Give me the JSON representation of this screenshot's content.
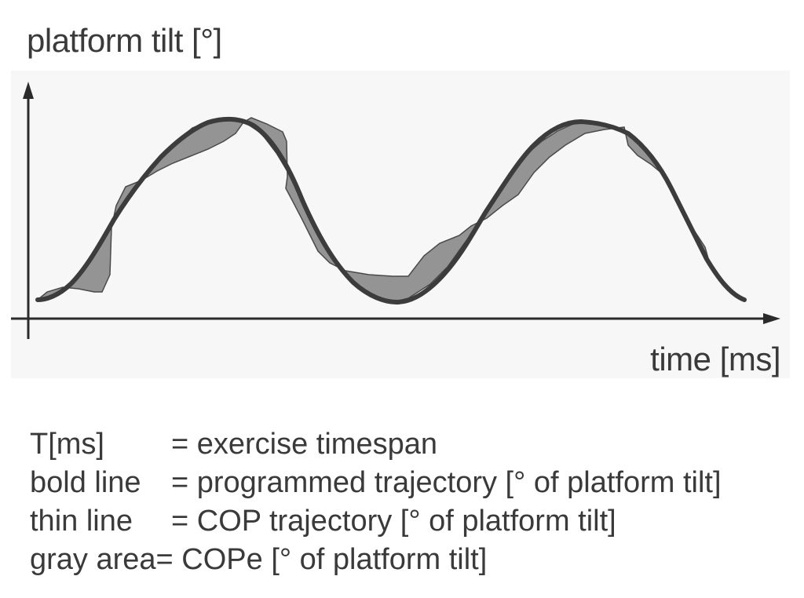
{
  "figure": {
    "y_label": "platform tilt [°]",
    "x_label": "time [ms]",
    "colors": {
      "axis": "#2b2b2b",
      "programmed": "#3c3c3c",
      "cop_line": "#4a4a4a",
      "cope_fill": "#8e8e8e",
      "background": "#f7f7f7"
    }
  },
  "legend": [
    {
      "term": "T[ms]",
      "desc": "= exercise timespan"
    },
    {
      "term": "bold line",
      "desc": "= programmed trajectory [° of platform tilt]"
    },
    {
      "term": "thin line",
      "desc": "= COP trajectory [° of platform tilt]"
    },
    {
      "term": "gray area",
      "desc": "= COPe [°  of platform tilt]"
    }
  ]
}
